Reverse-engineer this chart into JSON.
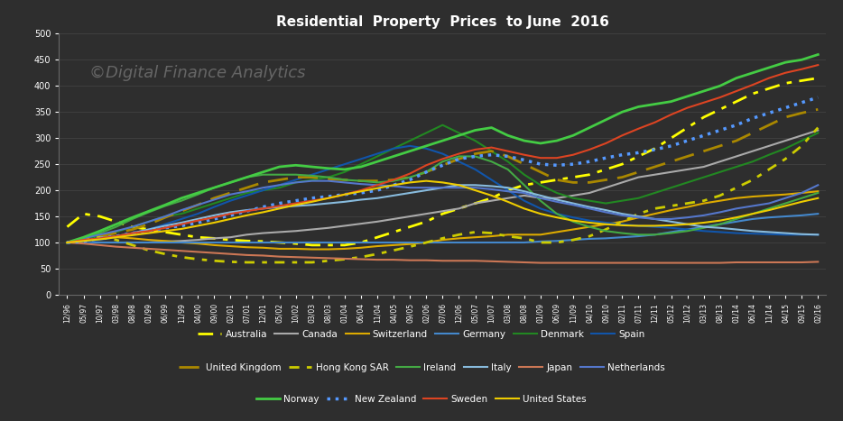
{
  "title": "Residential  Property  Prices  to June  2016",
  "watermark": "©Digital Finance Analytics",
  "background_color": "#2e2e2e",
  "text_color": "#ffffff",
  "ylim": [
    0,
    500
  ],
  "yticks": [
    0,
    50,
    100,
    150,
    200,
    250,
    300,
    350,
    400,
    450,
    500
  ],
  "x_labels": [
    "12/96",
    "05/97",
    "10/97",
    "03/98",
    "08/98",
    "01/99",
    "06/99",
    "11/99",
    "04/00",
    "09/00",
    "02/01",
    "07/01",
    "12/01",
    "05/02",
    "10/02",
    "03/03",
    "08/03",
    "01/04",
    "06/04",
    "11/04",
    "04/05",
    "09/05",
    "02/06",
    "07/06",
    "12/06",
    "05/07",
    "10/07",
    "03/08",
    "08/08",
    "01/09",
    "06/09",
    "11/09",
    "04/10",
    "09/10",
    "02/11",
    "07/11",
    "12/11",
    "05/12",
    "10/12",
    "03/13",
    "08/13",
    "01/14",
    "06/14",
    "11/14",
    "04/15",
    "09/15",
    "02/16"
  ],
  "series": {
    "Australia": {
      "color": "#ffff00",
      "linestyle": "--",
      "linewidth": 2.0,
      "dashes": [
        6,
        3,
        2,
        3
      ],
      "values": [
        130,
        155,
        150,
        140,
        130,
        125,
        120,
        115,
        110,
        108,
        105,
        103,
        102,
        100,
        98,
        95,
        95,
        95,
        100,
        110,
        120,
        130,
        140,
        155,
        165,
        175,
        185,
        200,
        210,
        215,
        220,
        225,
        230,
        240,
        250,
        265,
        280,
        300,
        320,
        340,
        355,
        370,
        385,
        395,
        405,
        410,
        415
      ]
    },
    "Canada": {
      "color": "#aaaaaa",
      "linestyle": "-",
      "linewidth": 1.5,
      "values": [
        100,
        100,
        100,
        100,
        100,
        100,
        102,
        103,
        105,
        108,
        110,
        115,
        118,
        120,
        122,
        125,
        128,
        132,
        136,
        140,
        145,
        150,
        155,
        160,
        165,
        175,
        180,
        185,
        190,
        185,
        185,
        190,
        195,
        205,
        215,
        225,
        230,
        235,
        240,
        245,
        255,
        265,
        275,
        285,
        295,
        305,
        315
      ]
    },
    "Switzerland": {
      "color": "#ddaa00",
      "linestyle": "-",
      "linewidth": 1.5,
      "values": [
        100,
        105,
        108,
        110,
        108,
        105,
        103,
        100,
        98,
        95,
        93,
        91,
        90,
        88,
        88,
        87,
        87,
        88,
        90,
        93,
        95,
        97,
        100,
        105,
        108,
        110,
        112,
        115,
        115,
        115,
        120,
        125,
        130,
        135,
        140,
        148,
        155,
        162,
        168,
        175,
        180,
        185,
        188,
        190,
        192,
        195,
        198
      ]
    },
    "Germany": {
      "color": "#4488cc",
      "linestyle": "-",
      "linewidth": 1.5,
      "values": [
        100,
        100,
        100,
        100,
        100,
        100,
        100,
        100,
        100,
        100,
        100,
        100,
        100,
        100,
        100,
        100,
        100,
        100,
        100,
        100,
        100,
        100,
        100,
        100,
        100,
        100,
        100,
        100,
        100,
        102,
        103,
        105,
        107,
        108,
        110,
        112,
        115,
        120,
        125,
        130,
        135,
        140,
        145,
        148,
        150,
        152,
        155
      ]
    },
    "Denmark": {
      "color": "#228822",
      "linestyle": "-",
      "linewidth": 1.5,
      "values": [
        100,
        105,
        112,
        120,
        130,
        140,
        150,
        155,
        165,
        175,
        185,
        195,
        200,
        205,
        215,
        220,
        225,
        235,
        250,
        265,
        280,
        295,
        310,
        325,
        310,
        295,
        275,
        255,
        230,
        210,
        195,
        185,
        180,
        175,
        180,
        185,
        195,
        205,
        215,
        225,
        235,
        245,
        255,
        268,
        280,
        295,
        310
      ]
    },
    "Spain": {
      "color": "#1155aa",
      "linestyle": "-",
      "linewidth": 1.5,
      "values": [
        100,
        100,
        105,
        110,
        118,
        125,
        135,
        145,
        155,
        168,
        180,
        190,
        200,
        210,
        220,
        230,
        240,
        250,
        260,
        270,
        280,
        285,
        280,
        270,
        255,
        240,
        220,
        200,
        180,
        165,
        155,
        148,
        142,
        138,
        135,
        132,
        130,
        128,
        125,
        122,
        120,
        118,
        117,
        116,
        115,
        115,
        115
      ]
    },
    "United Kingdom": {
      "color": "#aa8800",
      "linestyle": "--",
      "linewidth": 2.0,
      "dashes": [
        8,
        4
      ],
      "values": [
        100,
        105,
        112,
        118,
        125,
        135,
        148,
        160,
        172,
        185,
        195,
        205,
        215,
        220,
        225,
        225,
        222,
        220,
        218,
        218,
        220,
        225,
        235,
        248,
        260,
        270,
        275,
        265,
        250,
        235,
        220,
        215,
        215,
        220,
        225,
        235,
        245,
        255,
        265,
        275,
        285,
        295,
        310,
        325,
        340,
        348,
        355
      ]
    },
    "Hong Kong SAR": {
      "color": "#cccc00",
      "linestyle": "--",
      "linewidth": 2.0,
      "dashes": [
        4,
        3,
        2,
        3
      ],
      "values": [
        100,
        105,
        110,
        105,
        95,
        85,
        78,
        72,
        68,
        65,
        63,
        62,
        62,
        62,
        62,
        62,
        65,
        68,
        72,
        78,
        85,
        92,
        100,
        108,
        115,
        120,
        118,
        112,
        108,
        100,
        100,
        105,
        112,
        125,
        140,
        155,
        165,
        170,
        175,
        180,
        190,
        205,
        220,
        240,
        260,
        285,
        320
      ]
    },
    "Ireland": {
      "color": "#44aa44",
      "linestyle": "-",
      "linewidth": 1.5,
      "values": [
        100,
        108,
        118,
        130,
        145,
        158,
        170,
        180,
        192,
        205,
        215,
        225,
        230,
        230,
        230,
        228,
        225,
        220,
        218,
        215,
        218,
        225,
        235,
        255,
        265,
        265,
        255,
        240,
        210,
        180,
        155,
        140,
        130,
        122,
        118,
        115,
        115,
        118,
        122,
        128,
        135,
        145,
        155,
        165,
        175,
        185,
        195
      ]
    },
    "Italy": {
      "color": "#88bbdd",
      "linestyle": "-",
      "linewidth": 1.5,
      "values": [
        100,
        103,
        108,
        112,
        118,
        125,
        132,
        138,
        145,
        152,
        158,
        162,
        165,
        168,
        170,
        172,
        175,
        178,
        182,
        185,
        190,
        195,
        200,
        205,
        210,
        210,
        208,
        205,
        198,
        190,
        182,
        175,
        168,
        162,
        155,
        150,
        145,
        140,
        135,
        130,
        128,
        125,
        122,
        120,
        118,
        116,
        115
      ]
    },
    "Japan": {
      "color": "#cc7755",
      "linestyle": "-",
      "linewidth": 1.5,
      "values": [
        100,
        98,
        95,
        92,
        90,
        88,
        86,
        84,
        82,
        80,
        78,
        76,
        75,
        73,
        72,
        71,
        70,
        69,
        68,
        67,
        67,
        66,
        66,
        65,
        65,
        65,
        64,
        63,
        62,
        61,
        61,
        61,
        61,
        61,
        61,
        61,
        61,
        61,
        61,
        61,
        61,
        62,
        62,
        62,
        62,
        62,
        63
      ]
    },
    "Netherlands": {
      "color": "#5577cc",
      "linestyle": "-",
      "linewidth": 1.5,
      "values": [
        100,
        108,
        115,
        122,
        130,
        140,
        150,
        162,
        172,
        182,
        192,
        198,
        205,
        210,
        215,
        218,
        218,
        215,
        212,
        210,
        208,
        205,
        205,
        205,
        205,
        205,
        202,
        198,
        195,
        185,
        178,
        172,
        165,
        158,
        152,
        148,
        145,
        145,
        148,
        152,
        158,
        165,
        170,
        175,
        185,
        195,
        210
      ]
    },
    "Norway": {
      "color": "#44cc44",
      "linestyle": "-",
      "linewidth": 2.0,
      "values": [
        100,
        110,
        122,
        135,
        148,
        160,
        172,
        185,
        195,
        205,
        215,
        225,
        235,
        245,
        248,
        245,
        242,
        240,
        245,
        255,
        265,
        275,
        285,
        295,
        305,
        315,
        320,
        305,
        295,
        290,
        295,
        305,
        320,
        335,
        350,
        360,
        365,
        370,
        380,
        390,
        400,
        415,
        425,
        435,
        445,
        450,
        460
      ]
    },
    "New Zealand": {
      "color": "#5599ff",
      "linestyle": ":",
      "linewidth": 2.5,
      "values": [
        100,
        102,
        108,
        112,
        118,
        122,
        128,
        132,
        138,
        145,
        152,
        160,
        168,
        175,
        180,
        185,
        188,
        192,
        195,
        200,
        210,
        220,
        235,
        248,
        260,
        265,
        268,
        265,
        258,
        250,
        248,
        250,
        255,
        262,
        268,
        272,
        278,
        285,
        295,
        305,
        315,
        325,
        338,
        348,
        358,
        368,
        378
      ]
    },
    "Sweden": {
      "color": "#dd4422",
      "linestyle": "-",
      "linewidth": 1.5,
      "values": [
        100,
        105,
        108,
        112,
        118,
        122,
        128,
        135,
        142,
        148,
        155,
        160,
        165,
        170,
        175,
        180,
        185,
        192,
        200,
        210,
        220,
        232,
        248,
        260,
        270,
        278,
        282,
        275,
        268,
        262,
        262,
        268,
        278,
        290,
        305,
        318,
        330,
        345,
        358,
        368,
        378,
        390,
        402,
        415,
        425,
        432,
        440
      ]
    },
    "United States": {
      "color": "#eecc00",
      "linestyle": "-",
      "linewidth": 1.5,
      "values": [
        100,
        103,
        106,
        110,
        114,
        118,
        122,
        126,
        132,
        138,
        145,
        152,
        158,
        165,
        172,
        178,
        185,
        192,
        198,
        204,
        210,
        215,
        218,
        215,
        210,
        200,
        190,
        178,
        165,
        155,
        148,
        142,
        138,
        135,
        133,
        132,
        132,
        133,
        135,
        138,
        142,
        148,
        155,
        162,
        170,
        178,
        185
      ]
    }
  },
  "legend_order": [
    [
      "Australia",
      "Canada",
      "Switzerland",
      "Germany",
      "Denmark",
      "Spain"
    ],
    [
      "United Kingdom",
      "Hong Kong SAR",
      "Ireland",
      "Italy",
      "Japan",
      "Netherlands"
    ],
    [
      "Norway",
      "New Zealand",
      "Sweden",
      "United States"
    ]
  ]
}
